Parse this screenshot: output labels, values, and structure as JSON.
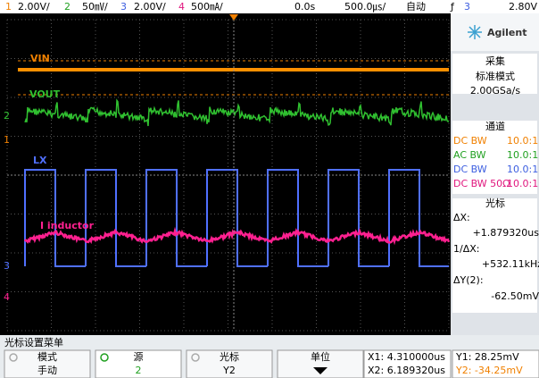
{
  "top_bar": {
    "ch1": {
      "num": "1",
      "scale": "2.00V/"
    },
    "ch2": {
      "num": "2",
      "scale": "50㎷/"
    },
    "ch3": {
      "num": "3",
      "scale": "2.00V/"
    },
    "ch4": {
      "num": "4",
      "scale": "500㎃/"
    },
    "delay": "0.0s",
    "timebase": "500.0㎲/",
    "mode": "自动",
    "trigger": {
      "slope": "ƒ",
      "source": "3",
      "level": "2.80V"
    }
  },
  "traces": {
    "vin": "VIN",
    "vout": "VOUT",
    "lx": "LX",
    "inductor": "I inductor"
  },
  "side_panel": {
    "brand": "Agilent",
    "acquire": {
      "title": "采集",
      "mode": "标准模式",
      "rate": "2.00GSa/s"
    },
    "channels": {
      "title": "通道",
      "rows": [
        {
          "coupling": "DC BW",
          "probe": "10.0:1"
        },
        {
          "coupling": "AC BW",
          "probe": "10.0:1"
        },
        {
          "coupling": "DC BW",
          "probe": "10.0:1"
        },
        {
          "coupling": "DC BW 50Ω",
          "probe": "10.0:1"
        }
      ]
    },
    "cursors": {
      "title": "光标",
      "dx_label": "ΔX:",
      "dx": "+1.879320us",
      "inv_label": "1/ΔX:",
      "inv": "+532.11kHz",
      "dy_label": "ΔY(2):",
      "dy": "-62.50mV"
    }
  },
  "menu": {
    "title": "光标设置菜单",
    "keys": [
      {
        "label": "模式",
        "value": "手动"
      },
      {
        "label": "源",
        "value": "2"
      },
      {
        "label": "光标",
        "value": "Y2"
      },
      {
        "label": "单位",
        "value": ""
      }
    ],
    "readout": {
      "x1": "X1: 4.310000us",
      "x2": "X2: 6.189320us",
      "y1": "Y1: 28.25mV",
      "y2": "Y2: -34.25mV"
    }
  }
}
